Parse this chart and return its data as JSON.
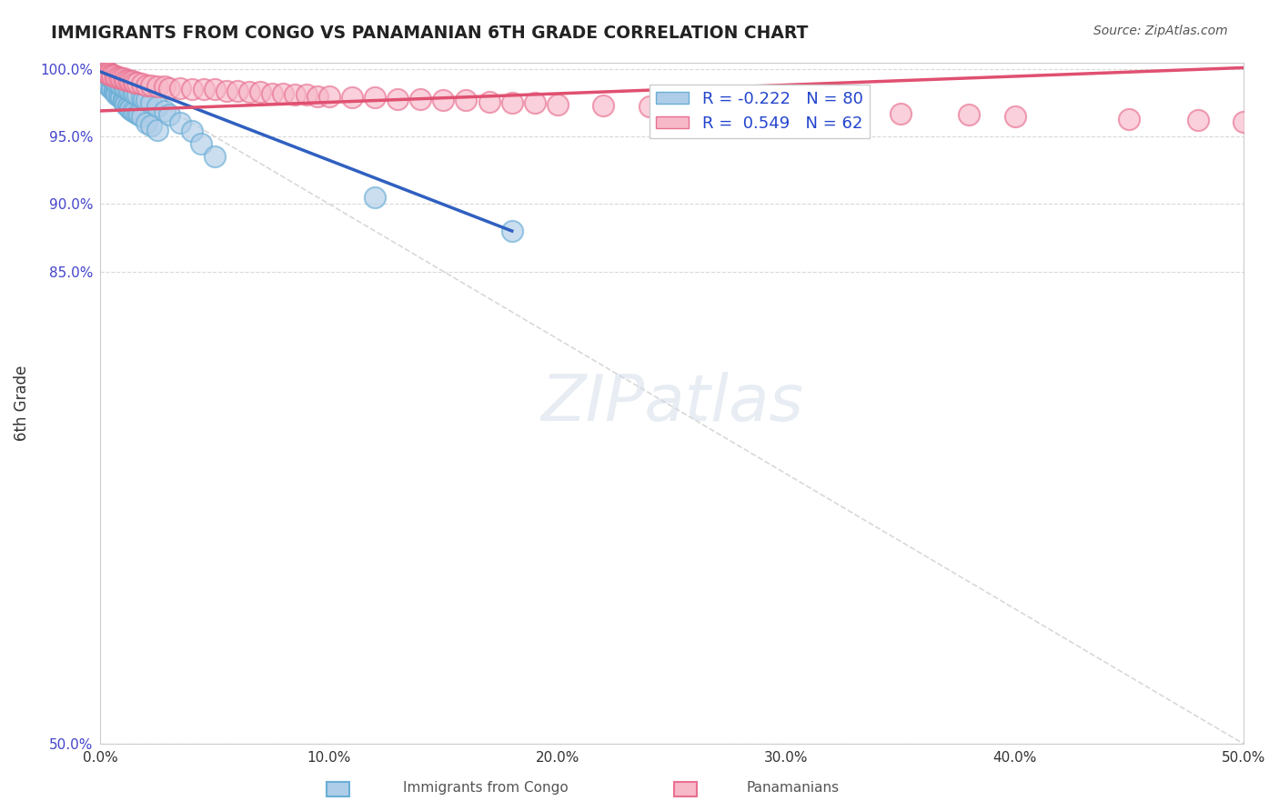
{
  "title": "IMMIGRANTS FROM CONGO VS PANAMANIAN 6TH GRADE CORRELATION CHART",
  "source_text": "Source: ZipAtlas.com",
  "xlabel_bottom": "",
  "ylabel": "6th Grade",
  "xlim": [
    0.0,
    0.5
  ],
  "ylim": [
    0.5,
    1.005
  ],
  "xtick_labels": [
    "0.0%",
    "10.0%",
    "20.0%",
    "30.0%",
    "40.0%",
    "50.0%"
  ],
  "xtick_vals": [
    0.0,
    0.1,
    0.2,
    0.3,
    0.4,
    0.5
  ],
  "ytick_labels": [
    "50.0%",
    "85.0%",
    "90.0%",
    "95.0%",
    "100.0%"
  ],
  "ytick_vals": [
    0.5,
    0.85,
    0.9,
    0.95,
    1.0
  ],
  "legend_entries": [
    {
      "label": "R = -0.222   N = 80",
      "color": "#a8c4e0"
    },
    {
      "label": "R =  0.549   N = 62",
      "color": "#f4a0b0"
    }
  ],
  "watermark": "ZIPatlas",
  "congo_color": "#6aaed6",
  "panama_color": "#f080a0",
  "blue_line_color": "#3060c0",
  "pink_line_color": "#e05070",
  "diag_line_color": "#b0b0b0",
  "background_color": "#ffffff",
  "grid_color": "#d0d0d0",
  "congo_points_x": [
    0.001,
    0.001,
    0.001,
    0.002,
    0.002,
    0.002,
    0.002,
    0.003,
    0.003,
    0.003,
    0.003,
    0.003,
    0.004,
    0.004,
    0.004,
    0.005,
    0.005,
    0.005,
    0.006,
    0.006,
    0.006,
    0.007,
    0.007,
    0.007,
    0.008,
    0.008,
    0.009,
    0.009,
    0.01,
    0.01,
    0.01,
    0.011,
    0.011,
    0.012,
    0.012,
    0.013,
    0.013,
    0.014,
    0.015,
    0.016,
    0.017,
    0.018,
    0.02,
    0.022,
    0.025,
    0.001,
    0.002,
    0.003,
    0.003,
    0.004,
    0.004,
    0.004,
    0.005,
    0.005,
    0.006,
    0.006,
    0.007,
    0.007,
    0.008,
    0.009,
    0.01,
    0.011,
    0.012,
    0.013,
    0.014,
    0.015,
    0.016,
    0.018,
    0.019,
    0.02,
    0.022,
    0.025,
    0.028,
    0.03,
    0.035,
    0.04,
    0.044,
    0.05,
    0.12,
    0.18
  ],
  "congo_points_y": [
    0.998,
    0.997,
    0.996,
    0.996,
    0.995,
    0.994,
    0.993,
    0.993,
    0.992,
    0.991,
    0.99,
    0.989,
    0.989,
    0.988,
    0.987,
    0.987,
    0.986,
    0.985,
    0.985,
    0.984,
    0.983,
    0.983,
    0.982,
    0.981,
    0.981,
    0.98,
    0.98,
    0.979,
    0.978,
    0.977,
    0.976,
    0.975,
    0.974,
    0.973,
    0.972,
    0.971,
    0.97,
    0.969,
    0.968,
    0.967,
    0.966,
    0.965,
    0.96,
    0.958,
    0.955,
    0.999,
    0.998,
    0.998,
    0.997,
    0.996,
    0.996,
    0.995,
    0.994,
    0.993,
    0.993,
    0.992,
    0.991,
    0.99,
    0.989,
    0.988,
    0.987,
    0.986,
    0.985,
    0.984,
    0.983,
    0.982,
    0.981,
    0.979,
    0.978,
    0.977,
    0.975,
    0.972,
    0.969,
    0.966,
    0.96,
    0.954,
    0.945,
    0.935,
    0.905,
    0.88
  ],
  "panama_points_x": [
    0.001,
    0.002,
    0.002,
    0.003,
    0.003,
    0.004,
    0.004,
    0.005,
    0.005,
    0.006,
    0.007,
    0.008,
    0.009,
    0.01,
    0.011,
    0.012,
    0.013,
    0.014,
    0.015,
    0.016,
    0.018,
    0.02,
    0.022,
    0.025,
    0.028,
    0.03,
    0.035,
    0.04,
    0.045,
    0.05,
    0.055,
    0.06,
    0.065,
    0.07,
    0.075,
    0.08,
    0.085,
    0.09,
    0.095,
    0.1,
    0.11,
    0.12,
    0.13,
    0.14,
    0.15,
    0.16,
    0.17,
    0.18,
    0.19,
    0.2,
    0.22,
    0.24,
    0.26,
    0.28,
    0.3,
    0.32,
    0.35,
    0.38,
    0.4,
    0.45,
    0.48,
    0.5
  ],
  "panama_points_y": [
    0.999,
    0.999,
    0.998,
    0.998,
    0.997,
    0.997,
    0.996,
    0.996,
    0.995,
    0.995,
    0.994,
    0.994,
    0.993,
    0.993,
    0.992,
    0.992,
    0.991,
    0.991,
    0.99,
    0.99,
    0.989,
    0.988,
    0.988,
    0.987,
    0.987,
    0.986,
    0.986,
    0.985,
    0.985,
    0.985,
    0.984,
    0.984,
    0.983,
    0.983,
    0.982,
    0.982,
    0.981,
    0.981,
    0.98,
    0.98,
    0.979,
    0.979,
    0.978,
    0.978,
    0.977,
    0.977,
    0.976,
    0.975,
    0.975,
    0.974,
    0.973,
    0.972,
    0.971,
    0.97,
    0.969,
    0.968,
    0.967,
    0.966,
    0.965,
    0.963,
    0.962,
    0.961
  ]
}
